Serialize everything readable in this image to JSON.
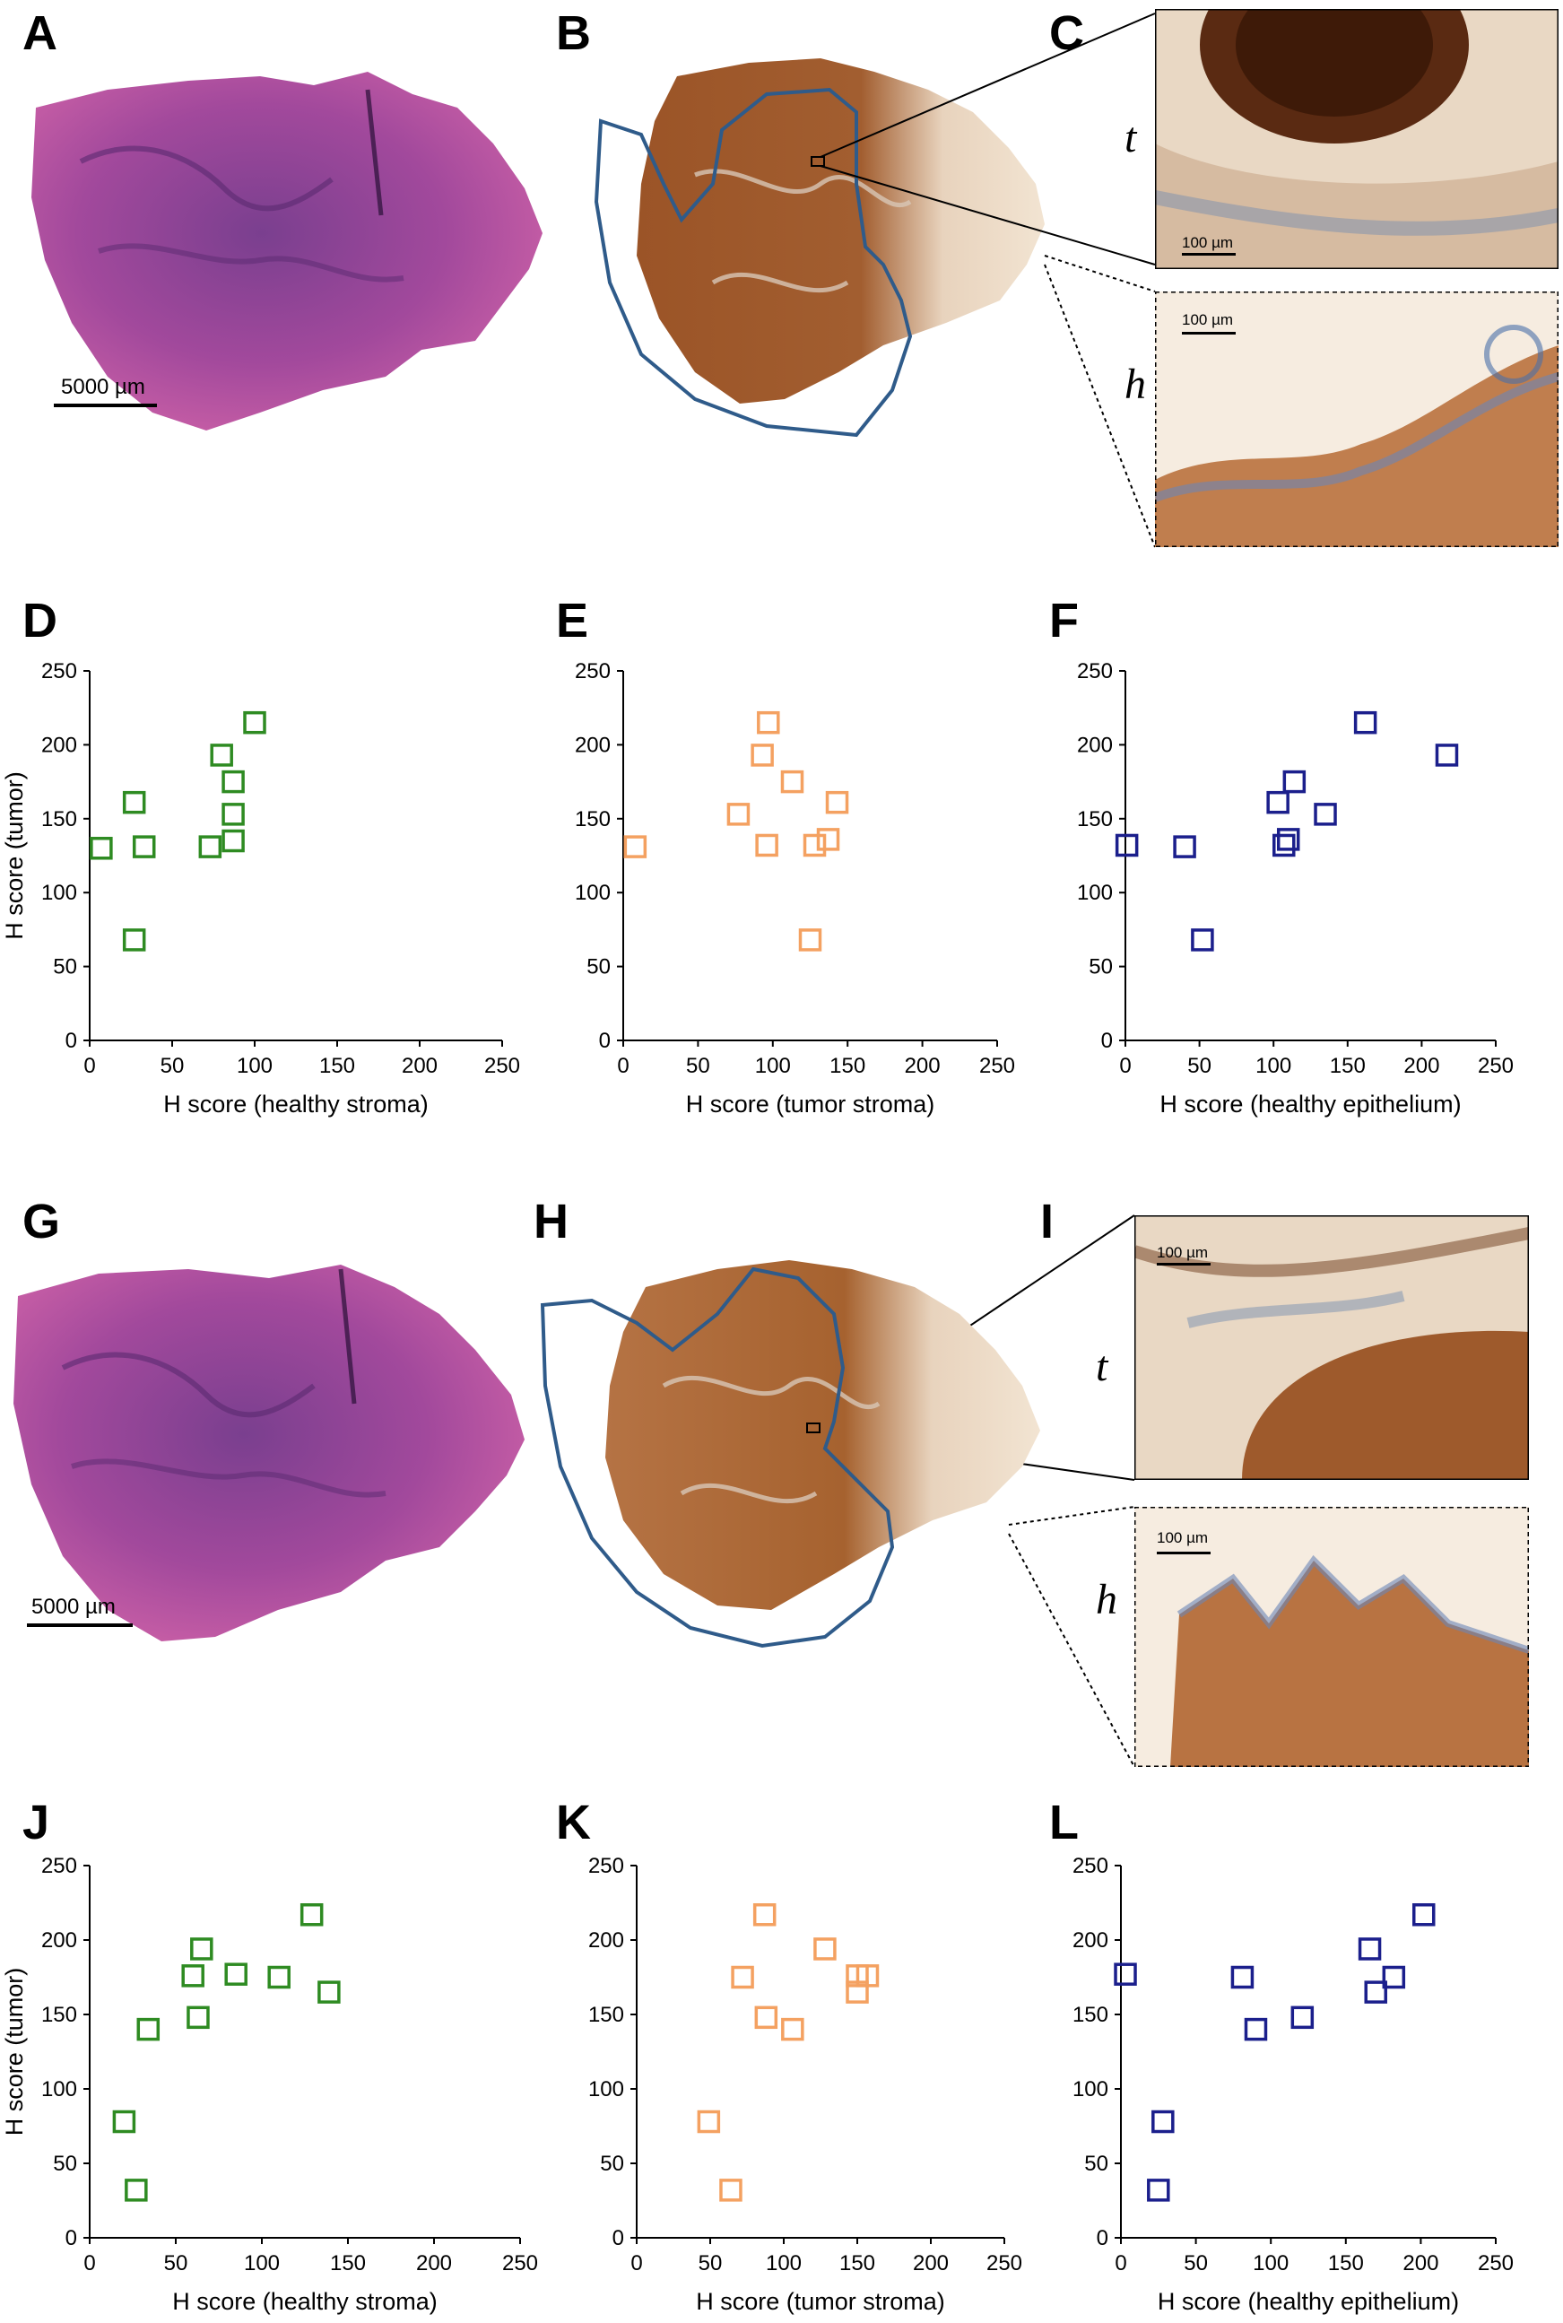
{
  "panels": {
    "A": "A",
    "B": "B",
    "C": "C",
    "D": "D",
    "E": "E",
    "F": "F",
    "G": "G",
    "H": "H",
    "I": "I",
    "J": "J",
    "K": "K",
    "L": "L"
  },
  "micro_labels": {
    "tumor": "t",
    "healthy": "h"
  },
  "scalebars": {
    "macro": "5000 µm",
    "micro": "100 µm"
  },
  "colors": {
    "stroma_healthy": "#2e8b22",
    "stroma_tumor": "#f4a161",
    "epithelium": "#1b1f8c",
    "he_stain": "#b24a9a",
    "ihc_stain": "#9a4f22",
    "outline": "#2f5b8a"
  },
  "chart_data": [
    {
      "type": "scatter",
      "panel": "D",
      "color": "stroma_healthy",
      "xlabel": "H score (healthy stroma)",
      "ylabel": "H score (tumor)",
      "xlim": [
        0,
        250
      ],
      "ylim": [
        0,
        250
      ],
      "xticks": [
        "0",
        "50",
        "100",
        "150",
        "200",
        "250"
      ],
      "yticks": [
        "0",
        "50",
        "100",
        "150",
        "200",
        "250"
      ],
      "x": [
        100,
        80,
        87,
        87,
        87,
        73,
        27,
        7,
        33,
        27
      ],
      "y": [
        215,
        193,
        175,
        153,
        135,
        131,
        161,
        130,
        131,
        68
      ]
    },
    {
      "type": "scatter",
      "panel": "E",
      "color": "stroma_tumor",
      "xlabel": "H score (tumor stroma)",
      "ylabel": "",
      "xlim": [
        0,
        250
      ],
      "ylim": [
        0,
        250
      ],
      "xticks": [
        "0",
        "50",
        "100",
        "150",
        "200",
        "250"
      ],
      "yticks": [
        "0",
        "50",
        "100",
        "150",
        "200",
        "250"
      ],
      "x": [
        97,
        93,
        113,
        77,
        143,
        96,
        128,
        137,
        8,
        125
      ],
      "y": [
        215,
        193,
        175,
        153,
        161,
        132,
        132,
        136,
        131,
        68
      ]
    },
    {
      "type": "scatter",
      "panel": "F",
      "color": "epithelium",
      "xlabel": "H score (healthy epithelium)",
      "ylabel": "",
      "xlim": [
        0,
        250
      ],
      "ylim": [
        0,
        250
      ],
      "xticks": [
        "0",
        "50",
        "100",
        "150",
        "200",
        "250"
      ],
      "yticks": [
        "0",
        "50",
        "100",
        "150",
        "200",
        "250"
      ],
      "x": [
        162,
        217,
        114,
        103,
        135,
        110,
        107,
        1,
        40,
        52
      ],
      "y": [
        215,
        193,
        175,
        161,
        153,
        136,
        132,
        132,
        131,
        68
      ]
    },
    {
      "type": "scatter",
      "panel": "J",
      "color": "stroma_healthy",
      "xlabel": "H score (healthy stroma)",
      "ylabel": "H score (tumor)",
      "xlim": [
        0,
        250
      ],
      "ylim": [
        0,
        250
      ],
      "xticks": [
        "0",
        "50",
        "100",
        "150",
        "200",
        "250"
      ],
      "yticks": [
        "0",
        "50",
        "100",
        "150",
        "200",
        "250"
      ],
      "x": [
        129,
        65,
        60,
        85,
        110,
        139,
        63,
        34,
        20,
        27
      ],
      "y": [
        217,
        194,
        176,
        177,
        175,
        165,
        148,
        140,
        78,
        32
      ]
    },
    {
      "type": "scatter",
      "panel": "K",
      "color": "stroma_tumor",
      "xlabel": "H score (tumor stroma)",
      "ylabel": "",
      "xlim": [
        0,
        250
      ],
      "ylim": [
        0,
        250
      ],
      "xticks": [
        "0",
        "50",
        "100",
        "150",
        "200",
        "250"
      ],
      "yticks": [
        "0",
        "50",
        "100",
        "150",
        "200",
        "250"
      ],
      "x": [
        87,
        128,
        72,
        150,
        157,
        150,
        88,
        106,
        49,
        64
      ],
      "y": [
        217,
        194,
        175,
        176,
        176,
        165,
        148,
        140,
        78,
        32
      ]
    },
    {
      "type": "scatter",
      "panel": "L",
      "color": "epithelium",
      "xlabel": "H score (healthy epithelium)",
      "ylabel": "",
      "xlim": [
        0,
        250
      ],
      "ylim": [
        0,
        250
      ],
      "xticks": [
        "0",
        "50",
        "100",
        "150",
        "200",
        "250"
      ],
      "yticks": [
        "0",
        "50",
        "100",
        "150",
        "200",
        "250"
      ],
      "x": [
        202,
        166,
        3,
        81,
        182,
        170,
        121,
        90,
        28,
        25
      ],
      "y": [
        217,
        194,
        177,
        175,
        175,
        165,
        148,
        140,
        78,
        32
      ]
    }
  ]
}
